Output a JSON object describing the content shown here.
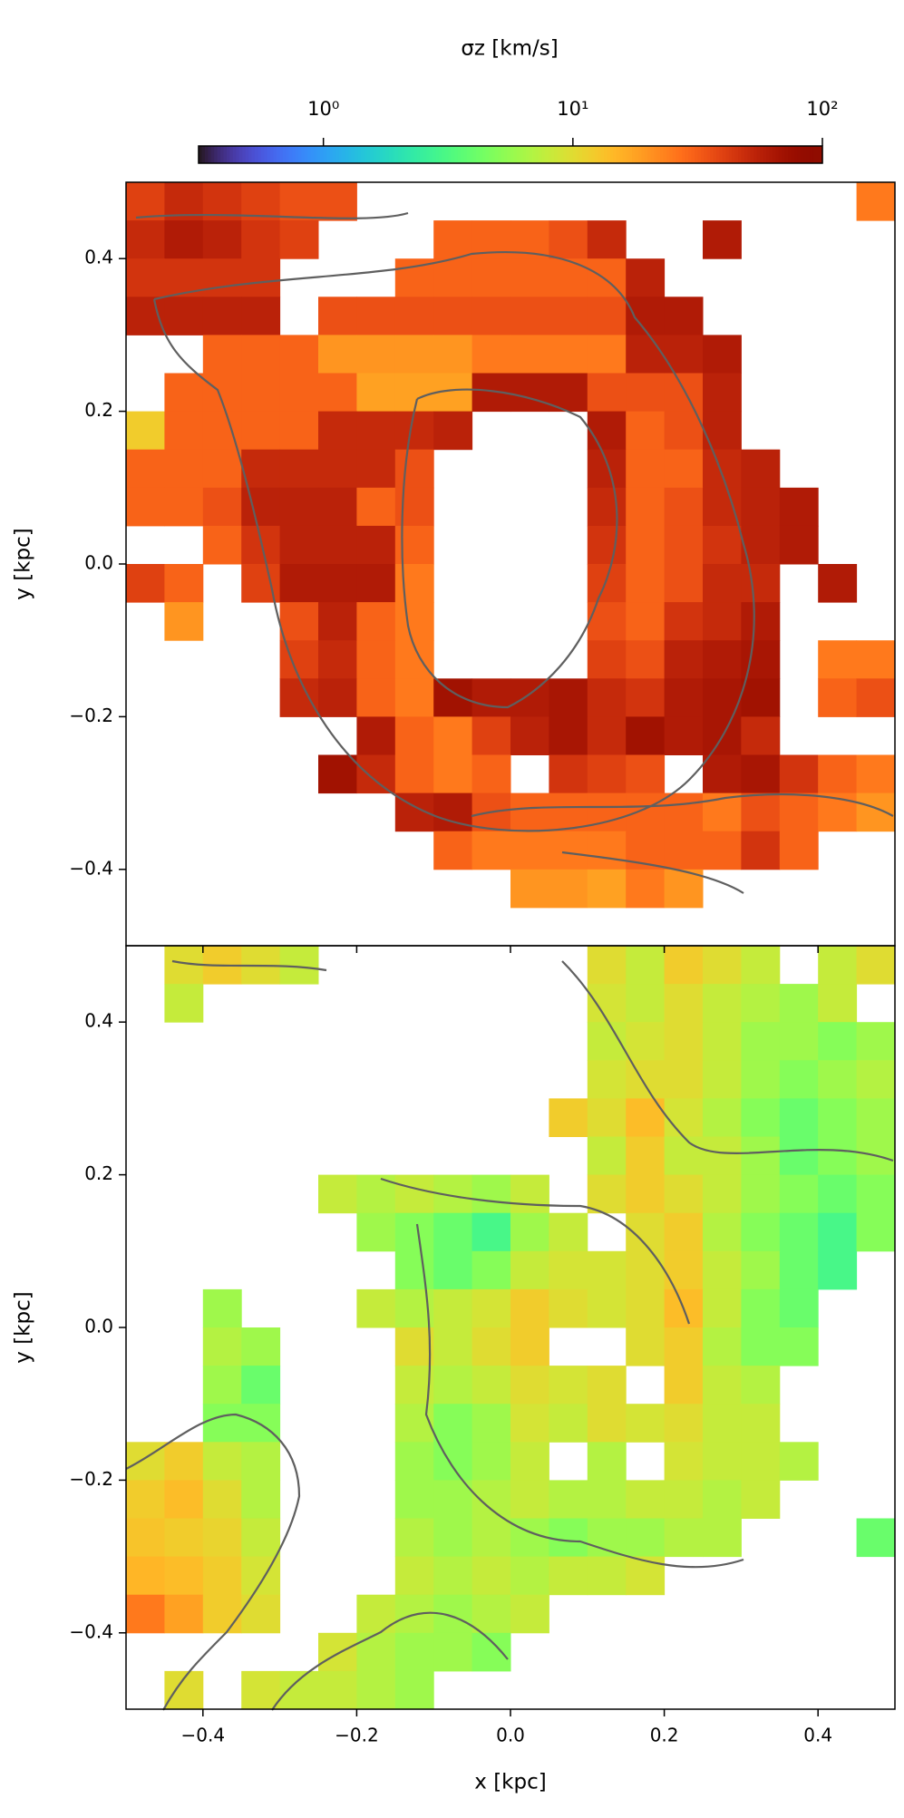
{
  "chart_data": {
    "type": "heatmap",
    "colormap": "turbo",
    "colorbar": {
      "label": "σz [km/s]",
      "clim": [
        0.316,
        100
      ],
      "log": true,
      "ticks": [
        {
          "value": 1,
          "label": "10⁰"
        },
        {
          "value": 10,
          "label": "10¹"
        },
        {
          "value": 100,
          "label": "10²"
        }
      ]
    },
    "xlabel": "x [kpc]",
    "xlim": [
      -0.5,
      0.5
    ],
    "ylim": [
      -0.5,
      0.5
    ],
    "xticks": [
      {
        "value": -0.4,
        "label": "−0.4"
      },
      {
        "value": -0.2,
        "label": "−0.2"
      },
      {
        "value": 0,
        "label": "0.0"
      },
      0.2,
      0.4
    ],
    "yticks": [
      {
        "value": -0.4,
        "label": "−0.4"
      },
      {
        "value": -0.2,
        "label": "−0.2"
      },
      {
        "value": 0,
        "label": "0.0"
      },
      0.2,
      0.4
    ],
    "x": [
      -0.475,
      -0.425,
      -0.375,
      -0.325,
      -0.275,
      -0.225,
      -0.175,
      -0.125,
      -0.075,
      -0.025,
      0.025,
      0.075,
      0.125,
      0.175,
      0.225,
      0.275,
      0.325,
      0.375,
      0.425,
      0.475
    ],
    "y": [
      0.475,
      0.425,
      0.375,
      0.325,
      0.275,
      0.225,
      0.175,
      0.125,
      0.075,
      0.025,
      -0.025,
      -0.075,
      -0.125,
      -0.175,
      -0.225,
      -0.275,
      -0.325,
      -0.375,
      -0.425,
      -0.475
    ],
    "panels": [
      {
        "ylabel": "y [kpc]",
        "values": [
          [
            40,
            50,
            45,
            40,
            35,
            35,
            null,
            null,
            null,
            null,
            null,
            null,
            null,
            null,
            null,
            null,
            null,
            null,
            null,
            25
          ],
          [
            50,
            60,
            55,
            45,
            40,
            null,
            null,
            null,
            30,
            30,
            30,
            35,
            50,
            null,
            null,
            60,
            null,
            null,
            null,
            null
          ],
          [
            45,
            45,
            45,
            45,
            null,
            null,
            null,
            30,
            30,
            30,
            30,
            30,
            30,
            55,
            null,
            null,
            null,
            null,
            null,
            null
          ],
          [
            55,
            55,
            55,
            55,
            null,
            35,
            35,
            35,
            35,
            35,
            35,
            35,
            35,
            60,
            60,
            null,
            null,
            null,
            null,
            null
          ],
          [
            null,
            null,
            30,
            30,
            30,
            20,
            20,
            20,
            20,
            25,
            25,
            25,
            25,
            55,
            55,
            60,
            null,
            null,
            null,
            null
          ],
          [
            null,
            30,
            30,
            30,
            30,
            30,
            18,
            18,
            18,
            60,
            60,
            60,
            35,
            35,
            35,
            55,
            null,
            null,
            null,
            null
          ],
          [
            12,
            30,
            30,
            30,
            30,
            50,
            50,
            50,
            55,
            null,
            null,
            null,
            60,
            30,
            35,
            55,
            null,
            null,
            null,
            null
          ],
          [
            30,
            30,
            30,
            50,
            50,
            50,
            50,
            35,
            null,
            null,
            null,
            null,
            55,
            30,
            30,
            50,
            55,
            null,
            null,
            null
          ],
          [
            30,
            30,
            35,
            55,
            55,
            55,
            30,
            35,
            null,
            null,
            null,
            null,
            50,
            30,
            35,
            50,
            55,
            60,
            null,
            null
          ],
          [
            null,
            null,
            30,
            45,
            55,
            55,
            55,
            30,
            null,
            null,
            null,
            null,
            45,
            30,
            35,
            45,
            55,
            60,
            null,
            null
          ],
          [
            40,
            30,
            null,
            40,
            60,
            60,
            60,
            25,
            null,
            null,
            null,
            null,
            40,
            30,
            35,
            50,
            50,
            null,
            60,
            null
          ],
          [
            null,
            20,
            null,
            null,
            35,
            55,
            30,
            25,
            null,
            null,
            null,
            null,
            35,
            30,
            45,
            50,
            60,
            null,
            null,
            null
          ],
          [
            null,
            null,
            null,
            null,
            40,
            50,
            30,
            25,
            null,
            null,
            null,
            null,
            40,
            35,
            55,
            60,
            65,
            null,
            25,
            25
          ],
          [
            null,
            null,
            null,
            null,
            50,
            55,
            30,
            25,
            70,
            60,
            60,
            65,
            50,
            45,
            60,
            65,
            70,
            null,
            30,
            35
          ],
          [
            null,
            null,
            null,
            null,
            null,
            null,
            60,
            30,
            25,
            40,
            55,
            65,
            50,
            70,
            60,
            65,
            50,
            null,
            null,
            null
          ],
          [
            null,
            null,
            null,
            null,
            null,
            70,
            50,
            30,
            25,
            30,
            null,
            45,
            40,
            35,
            null,
            60,
            65,
            45,
            30,
            25
          ],
          [
            null,
            null,
            null,
            null,
            null,
            null,
            null,
            55,
            60,
            35,
            30,
            30,
            30,
            30,
            30,
            25,
            35,
            30,
            25,
            20
          ],
          [
            null,
            null,
            null,
            null,
            null,
            null,
            null,
            null,
            30,
            25,
            25,
            25,
            25,
            30,
            30,
            30,
            45,
            30,
            null,
            null
          ],
          [
            null,
            null,
            null,
            null,
            null,
            null,
            null,
            null,
            null,
            null,
            20,
            20,
            18,
            25,
            20,
            null,
            null,
            null,
            null,
            null
          ],
          [
            null,
            null,
            null,
            null,
            null,
            null,
            null,
            null,
            null,
            null,
            null,
            null,
            null,
            null,
            null,
            null,
            null,
            null,
            null,
            null
          ]
        ]
      },
      {
        "ylabel": "y [kpc]",
        "values": [
          [
            null,
            10,
            12,
            10,
            8,
            null,
            null,
            null,
            null,
            null,
            null,
            null,
            10,
            8,
            12,
            10,
            8,
            null,
            8,
            10
          ],
          [
            null,
            8,
            null,
            null,
            null,
            null,
            null,
            null,
            null,
            null,
            null,
            null,
            9,
            8,
            10,
            8,
            7,
            6,
            8,
            null
          ],
          [
            null,
            null,
            null,
            null,
            null,
            null,
            null,
            null,
            null,
            null,
            null,
            null,
            8,
            9,
            10,
            8,
            6,
            6,
            5,
            6
          ],
          [
            null,
            null,
            null,
            null,
            null,
            null,
            null,
            null,
            null,
            null,
            null,
            null,
            9,
            10,
            10,
            8,
            6,
            5,
            6,
            7
          ],
          [
            null,
            null,
            null,
            null,
            null,
            null,
            null,
            null,
            null,
            null,
            null,
            12,
            10,
            14,
            9,
            7,
            5,
            4,
            5,
            6
          ],
          [
            null,
            null,
            null,
            null,
            null,
            null,
            null,
            null,
            null,
            null,
            null,
            null,
            8,
            12,
            8,
            8,
            6,
            4,
            5,
            6
          ],
          [
            null,
            null,
            null,
            null,
            null,
            8,
            7,
            8,
            7,
            6,
            8,
            null,
            10,
            12,
            10,
            8,
            6,
            5,
            4,
            5
          ],
          [
            null,
            null,
            null,
            null,
            null,
            null,
            6,
            5,
            4,
            3,
            6,
            8,
            null,
            10,
            12,
            7,
            5,
            4,
            3,
            5
          ],
          [
            null,
            null,
            null,
            null,
            null,
            null,
            null,
            5,
            4,
            5,
            8,
            9,
            9,
            10,
            12,
            8,
            6,
            4,
            3,
            null
          ],
          [
            null,
            null,
            6,
            null,
            null,
            null,
            8,
            7,
            8,
            9,
            12,
            10,
            9,
            10,
            14,
            8,
            5,
            4,
            null,
            null
          ],
          [
            null,
            null,
            7,
            6,
            null,
            null,
            null,
            10,
            8,
            10,
            12,
            null,
            null,
            10,
            12,
            7,
            5,
            5,
            null,
            null
          ],
          [
            null,
            null,
            6,
            4,
            null,
            null,
            null,
            8,
            7,
            8,
            10,
            9,
            10,
            null,
            12,
            8,
            7,
            null,
            null,
            null
          ],
          [
            null,
            null,
            5,
            5,
            null,
            null,
            null,
            7,
            5,
            6,
            9,
            8,
            10,
            9,
            10,
            8,
            8,
            null,
            null,
            null
          ],
          [
            10,
            12,
            8,
            7,
            null,
            null,
            null,
            6,
            5,
            6,
            8,
            null,
            7,
            null,
            9,
            8,
            8,
            7,
            null,
            null
          ],
          [
            12,
            14,
            10,
            7,
            null,
            null,
            null,
            6,
            6,
            7,
            8,
            7,
            7,
            8,
            8,
            7,
            8,
            null,
            null,
            null
          ],
          [
            13,
            12,
            11,
            8,
            null,
            null,
            null,
            7,
            6,
            7,
            6,
            5,
            6,
            6,
            7,
            7,
            null,
            null,
            null,
            4
          ],
          [
            15,
            14,
            12,
            9,
            null,
            null,
            null,
            8,
            7,
            8,
            7,
            8,
            8,
            9,
            null,
            null,
            null,
            null,
            null,
            null
          ],
          [
            25,
            18,
            12,
            10,
            null,
            null,
            8,
            7,
            6,
            7,
            8,
            null,
            null,
            null,
            null,
            null,
            null,
            null,
            null,
            null
          ],
          [
            null,
            null,
            null,
            null,
            null,
            9,
            7,
            6,
            6,
            5,
            null,
            null,
            null,
            null,
            null,
            null,
            null,
            null,
            null,
            null
          ],
          [
            null,
            10,
            null,
            9,
            8,
            8,
            7,
            6,
            null,
            null,
            null,
            null,
            null,
            null,
            null,
            null,
            null,
            null,
            null,
            null
          ]
        ]
      }
    ]
  }
}
